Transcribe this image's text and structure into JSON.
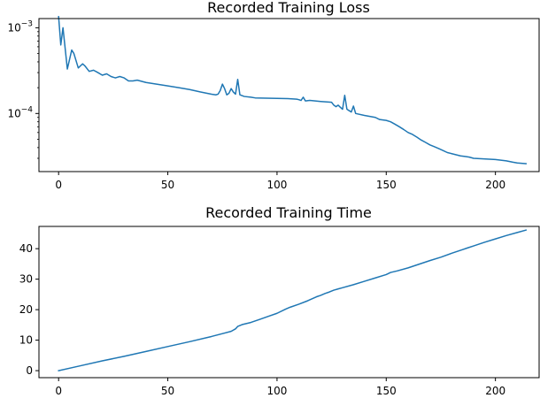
{
  "chart_data": [
    {
      "type": "line",
      "title": "Recorded Training Loss",
      "xlabel": "",
      "ylabel": "",
      "yscale": "log",
      "xlim": [
        -9,
        220
      ],
      "ylim": [
        2.1e-05,
        0.00128
      ],
      "x_ticks": [
        0,
        50,
        100,
        150,
        200
      ],
      "y_ticks": [
        {
          "value": 0.001,
          "base": "10",
          "exp": "−3"
        },
        {
          "value": 0.0001,
          "base": "10",
          "exp": "−4"
        }
      ],
      "grid": false,
      "color": "#1f77b4",
      "x": [
        0,
        1,
        2,
        4,
        6,
        7,
        9,
        11,
        12,
        14,
        16,
        18,
        20,
        22,
        24,
        26,
        28,
        30,
        32,
        34,
        36,
        40,
        50,
        55,
        60,
        65,
        70,
        72,
        73,
        74,
        75,
        76,
        77,
        78,
        79,
        80,
        81,
        82,
        83,
        85,
        88,
        90,
        100,
        105,
        109,
        110,
        111,
        112,
        113,
        115,
        120,
        125,
        126,
        127,
        128,
        129,
        130,
        131,
        132,
        133,
        134,
        135,
        136,
        140,
        145,
        147,
        150,
        152,
        154,
        156,
        158,
        160,
        162,
        164,
        166,
        168,
        170,
        172,
        174,
        176,
        178,
        180,
        182,
        184,
        186,
        188,
        190,
        200,
        205,
        208,
        210,
        214
      ],
      "y": [
        0.00135,
        0.00063,
        0.001,
        0.00033,
        0.00055,
        0.0005,
        0.00034,
        0.00038,
        0.00036,
        0.00031,
        0.00032,
        0.0003,
        0.00028,
        0.00029,
        0.00027,
        0.00026,
        0.00027,
        0.00026,
        0.00024,
        0.00024,
        0.000245,
        0.00023,
        0.00021,
        0.0002,
        0.00019,
        0.000178,
        0.000168,
        0.000165,
        0.000168,
        0.000185,
        0.00022,
        0.000195,
        0.000165,
        0.000172,
        0.000195,
        0.000178,
        0.000168,
        0.00025,
        0.000165,
        0.000158,
        0.000155,
        0.000152,
        0.00015,
        0.000149,
        0.000147,
        0.000145,
        0.000142,
        0.000155,
        0.00014,
        0.000142,
        0.000138,
        0.000135,
        0.000125,
        0.00012,
        0.000125,
        0.000118,
        0.000112,
        0.000163,
        0.000112,
        0.000108,
        0.000104,
        0.000122,
        0.0001,
        9.5e-05,
        9e-05,
        8.5e-05,
        8.3e-05,
        8e-05,
        7.5e-05,
        7e-05,
        6.5e-05,
        6e-05,
        5.7e-05,
        5.3e-05,
        4.9e-05,
        4.6e-05,
        4.3e-05,
        4.1e-05,
        3.9e-05,
        3.7e-05,
        3.5e-05,
        3.4e-05,
        3.3e-05,
        3.2e-05,
        3.15e-05,
        3.1e-05,
        3e-05,
        2.9e-05,
        2.8e-05,
        2.7e-05,
        2.65e-05,
        2.6e-05
      ]
    },
    {
      "type": "line",
      "title": "Recorded Training Time",
      "xlabel": "",
      "ylabel": "",
      "yscale": "linear",
      "xlim": [
        -9,
        220
      ],
      "ylim": [
        -2.3,
        47.3
      ],
      "x_ticks": [
        0,
        50,
        100,
        150,
        200
      ],
      "y_ticks": [
        0,
        10,
        20,
        30,
        40
      ],
      "grid": false,
      "color": "#1f77b4",
      "x": [
        0,
        10,
        20,
        30,
        40,
        50,
        60,
        70,
        79,
        81,
        82,
        84,
        88,
        92,
        96,
        100,
        104,
        106,
        110,
        114,
        118,
        120,
        122,
        124,
        126,
        130,
        135,
        140,
        145,
        150,
        152,
        155,
        160,
        165,
        170,
        175,
        180,
        185,
        187,
        190,
        195,
        200,
        205,
        210,
        214
      ],
      "y": [
        0,
        1.6,
        3.2,
        4.7,
        6.3,
        7.9,
        9.5,
        11.2,
        12.9,
        13.7,
        14.5,
        15.1,
        15.8,
        16.8,
        17.8,
        18.8,
        20.2,
        20.8,
        21.8,
        22.9,
        24.2,
        24.7,
        25.3,
        25.8,
        26.4,
        27.2,
        28.2,
        29.3,
        30.4,
        31.5,
        32.2,
        32.7,
        33.7,
        34.9,
        36.1,
        37.2,
        38.5,
        39.7,
        40.2,
        40.9,
        42.1,
        43.2,
        44.3,
        45.3,
        46.1
      ]
    }
  ]
}
